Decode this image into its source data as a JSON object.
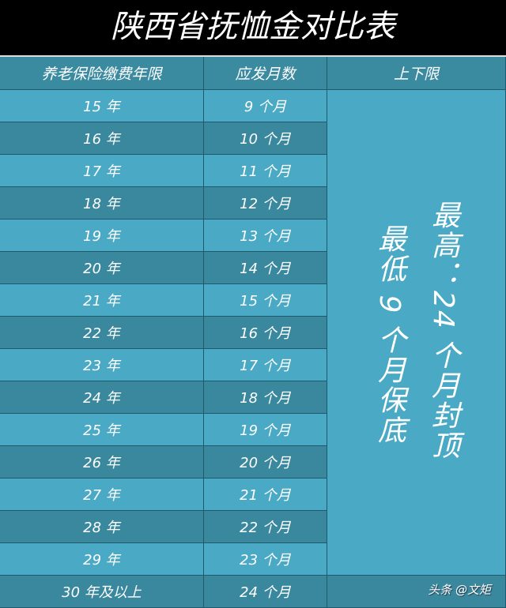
{
  "title": "陕西省抚恤金对比表",
  "headers": [
    "养老保险缴费年限",
    "应发月数",
    "上下限"
  ],
  "rows": [
    [
      "15 年",
      "9 个月"
    ],
    [
      "16 年",
      "10 个月"
    ],
    [
      "17 年",
      "11 个月"
    ],
    [
      "18 年",
      "12 个月"
    ],
    [
      "19 年",
      "13 个月"
    ],
    [
      "20 年",
      "14 个月"
    ],
    [
      "21 年",
      "15 个月"
    ],
    [
      "22 年",
      "16 个月"
    ],
    [
      "23 年",
      "17 个月"
    ],
    [
      "24 年",
      "18 个月"
    ],
    [
      "25 年",
      "19 个月"
    ],
    [
      "26 年",
      "20 个月"
    ],
    [
      "27 年",
      "21 个月"
    ],
    [
      "28 年",
      "22 个月"
    ],
    [
      "29 年",
      "23 个月"
    ],
    [
      "30 年及以上",
      "24 个月"
    ]
  ],
  "limits": {
    "max": "最高：24 个月封顶",
    "min": "最低 9 个月保底"
  },
  "watermark": "头条 @文矩",
  "colors": {
    "header": "#3a8aa0",
    "row_light": "#4aa9c4",
    "row_dark": "#3a889e",
    "title_bg": "#000000"
  }
}
